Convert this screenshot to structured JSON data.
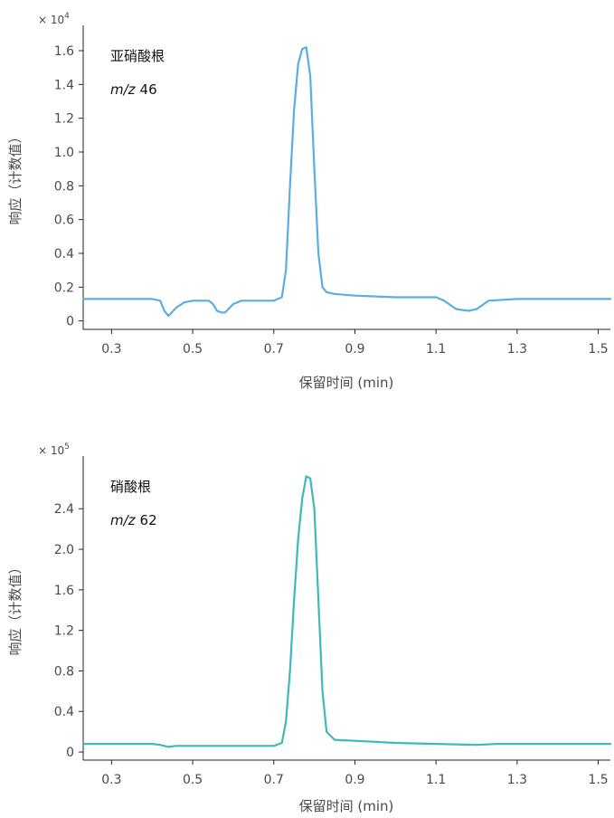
{
  "chart_data": [
    {
      "type": "line",
      "annotation": "亚硝酸根",
      "annotation_mz_prefix": "m/z",
      "annotation_mz_value": "46",
      "xlabel": "保留时间 (min)",
      "ylabel": "响应（计数值）",
      "y_multiplier_prefix": "× 10",
      "y_multiplier_exponent": "4",
      "xlim": [
        0.23,
        1.53
      ],
      "ylim": [
        -0.05,
        1.75
      ],
      "x_ticks": [
        0.3,
        0.5,
        0.7,
        0.9,
        1.1,
        1.3,
        1.5
      ],
      "x_tick_labels": [
        "0.3",
        "0.5",
        "0.7",
        "0.9",
        "1.1",
        "1.3",
        "1.5"
      ],
      "y_ticks": [
        0,
        0.2,
        0.4,
        0.6,
        0.8,
        1.0,
        1.2,
        1.4,
        1.6
      ],
      "y_tick_labels": [
        "0",
        "0.2",
        "0.4",
        "0.6",
        "0.8",
        "1.0",
        "1.2",
        "1.4",
        "1.6"
      ],
      "grid": false,
      "color": "#5aaee3",
      "series": [
        {
          "x": [
            0.23,
            0.3,
            0.4,
            0.42,
            0.43,
            0.44,
            0.46,
            0.48,
            0.5,
            0.52,
            0.54,
            0.55,
            0.56,
            0.57,
            0.58,
            0.6,
            0.62,
            0.65,
            0.7,
            0.72,
            0.73,
            0.74,
            0.75,
            0.76,
            0.77,
            0.78,
            0.79,
            0.8,
            0.81,
            0.82,
            0.83,
            0.85,
            0.9,
            1.0,
            1.05,
            1.1,
            1.12,
            1.15,
            1.18,
            1.2,
            1.23,
            1.3,
            1.4,
            1.53
          ],
          "y": [
            0.13,
            0.13,
            0.13,
            0.12,
            0.06,
            0.03,
            0.08,
            0.11,
            0.12,
            0.12,
            0.12,
            0.1,
            0.06,
            0.05,
            0.05,
            0.1,
            0.12,
            0.12,
            0.12,
            0.14,
            0.3,
            0.8,
            1.25,
            1.52,
            1.61,
            1.62,
            1.45,
            0.9,
            0.4,
            0.2,
            0.17,
            0.16,
            0.15,
            0.14,
            0.14,
            0.14,
            0.12,
            0.07,
            0.06,
            0.07,
            0.12,
            0.13,
            0.13,
            0.13
          ]
        }
      ]
    },
    {
      "type": "line",
      "annotation": "硝酸根",
      "annotation_mz_prefix": "m/z",
      "annotation_mz_value": "62",
      "xlabel": "保留时间 (min)",
      "ylabel": "响应（计数值）",
      "y_multiplier_prefix": "× 10",
      "y_multiplier_exponent": "5",
      "xlim": [
        0.23,
        1.53
      ],
      "ylim": [
        -0.08,
        2.92
      ],
      "x_ticks": [
        0.3,
        0.5,
        0.7,
        0.9,
        1.1,
        1.3,
        1.5
      ],
      "x_tick_labels": [
        "0.3",
        "0.5",
        "0.7",
        "0.9",
        "1.1",
        "1.3",
        "1.5"
      ],
      "y_ticks": [
        0,
        0.4,
        0.8,
        1.2,
        1.6,
        2.0,
        2.4
      ],
      "y_tick_labels": [
        "0",
        "0.4",
        "0.8",
        "1.2",
        "1.6",
        "2.0",
        "2.4"
      ],
      "grid": false,
      "color": "#3fb8bc",
      "series": [
        {
          "x": [
            0.23,
            0.3,
            0.4,
            0.42,
            0.44,
            0.46,
            0.5,
            0.6,
            0.7,
            0.72,
            0.73,
            0.74,
            0.75,
            0.76,
            0.77,
            0.78,
            0.79,
            0.8,
            0.81,
            0.82,
            0.83,
            0.85,
            0.9,
            0.95,
            1.0,
            1.1,
            1.2,
            1.25,
            1.3,
            1.4,
            1.53
          ],
          "y": [
            0.08,
            0.08,
            0.08,
            0.07,
            0.05,
            0.06,
            0.06,
            0.06,
            0.06,
            0.09,
            0.3,
            0.8,
            1.5,
            2.1,
            2.5,
            2.72,
            2.7,
            2.4,
            1.5,
            0.6,
            0.2,
            0.12,
            0.11,
            0.1,
            0.09,
            0.08,
            0.07,
            0.08,
            0.08,
            0.08,
            0.08
          ]
        }
      ]
    }
  ]
}
